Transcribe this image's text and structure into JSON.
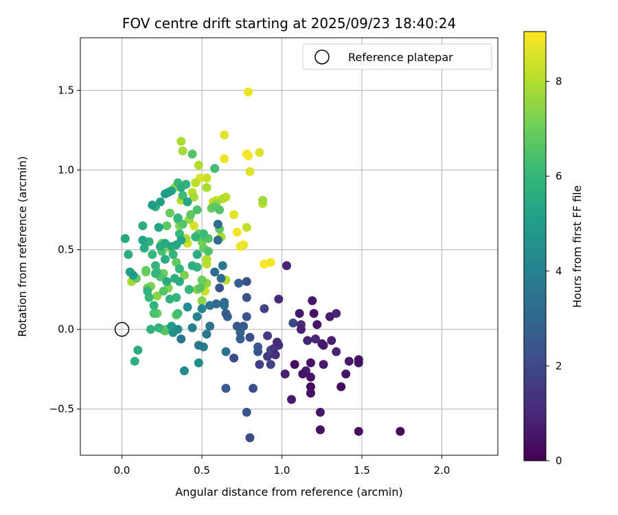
{
  "chart_data": {
    "type": "scatter",
    "title": "FOV centre drift starting at 2025/09/23 18:40:24",
    "xlabel": "Angular distance from reference (arcmin)",
    "ylabel": "Rotation from reference (arcmin)",
    "xlim": [
      -0.26,
      2.35
    ],
    "ylim": [
      -0.79,
      1.83
    ],
    "xticks": [
      0.0,
      0.5,
      1.0,
      1.5,
      2.0
    ],
    "xtick_labels": [
      "0.0",
      "0.5",
      "1.0",
      "1.5",
      "2.0"
    ],
    "yticks": [
      -0.5,
      0.0,
      0.5,
      1.0,
      1.5
    ],
    "ytick_labels": [
      "−0.5",
      "0.0",
      "0.5",
      "1.0",
      "1.5"
    ],
    "grid": true,
    "legend": {
      "position": "top-right",
      "entries": [
        "Reference platepar"
      ]
    },
    "reference_point": {
      "x": 0.0,
      "y": 0.0,
      "label": "Reference platepar"
    },
    "colorbar": {
      "label": "Hours from first FF file",
      "range": [
        0,
        9.05
      ],
      "ticks": [
        0,
        2,
        4,
        6,
        8
      ],
      "tick_labels": [
        "0",
        "2",
        "4",
        "6",
        "8"
      ],
      "colormap": "viridis",
      "stops": [
        "#440154",
        "#482878",
        "#3e4989",
        "#31688e",
        "#26828e",
        "#1f9e89",
        "#35b779",
        "#6ece58",
        "#b5de2b",
        "#fde725"
      ]
    },
    "points": [
      [
        1.74,
        -0.64,
        0.2
      ],
      [
        1.48,
        -0.64,
        0.3
      ],
      [
        1.24,
        -0.63,
        0.4
      ],
      [
        1.24,
        -0.52,
        0.6
      ],
      [
        1.48,
        -0.21,
        0.5
      ],
      [
        1.48,
        -0.19,
        0.4
      ],
      [
        1.42,
        -0.2,
        0.6
      ],
      [
        1.4,
        -0.28,
        0.5
      ],
      [
        1.37,
        -0.36,
        0.3
      ],
      [
        1.34,
        -0.14,
        0.9
      ],
      [
        1.31,
        -0.07,
        0.8
      ],
      [
        1.3,
        0.08,
        0.7
      ],
      [
        1.34,
        0.1,
        0.9
      ],
      [
        1.26,
        -0.1,
        0.6
      ],
      [
        1.26,
        -0.22,
        0.7
      ],
      [
        1.25,
        -0.09,
        0.8
      ],
      [
        1.22,
        0.03,
        0.5
      ],
      [
        1.21,
        -0.06,
        1.0
      ],
      [
        1.2,
        0.1,
        0.4
      ],
      [
        1.19,
        0.18,
        0.6
      ],
      [
        1.18,
        -0.21,
        0.4
      ],
      [
        1.18,
        -0.3,
        0.5
      ],
      [
        1.16,
        -0.07,
        0.9
      ],
      [
        1.18,
        -0.36,
        0.3
      ],
      [
        1.18,
        -0.4,
        0.4
      ],
      [
        1.15,
        -0.26,
        0.7
      ],
      [
        1.13,
        -0.28,
        0.5
      ],
      [
        1.12,
        0.03,
        1.2
      ],
      [
        1.12,
        0.0,
        0.8
      ],
      [
        1.11,
        0.1,
        0.6
      ],
      [
        1.08,
        -0.22,
        0.3
      ],
      [
        1.07,
        0.04,
        2.0
      ],
      [
        1.06,
        -0.44,
        0.7
      ],
      [
        1.03,
        0.4,
        0.9
      ],
      [
        1.02,
        -0.28,
        0.8
      ],
      [
        0.98,
        0.19,
        1.0
      ],
      [
        0.98,
        -0.1,
        1.3
      ],
      [
        0.97,
        -0.08,
        1.1
      ],
      [
        0.96,
        -0.16,
        1.2
      ],
      [
        0.95,
        -0.12,
        1.5
      ],
      [
        0.93,
        -0.22,
        1.8
      ],
      [
        0.93,
        -0.13,
        2.0
      ],
      [
        0.91,
        -0.17,
        1.6
      ],
      [
        0.91,
        -0.04,
        1.6
      ],
      [
        0.89,
        0.13,
        1.8
      ],
      [
        0.86,
        -0.22,
        1.7
      ],
      [
        0.85,
        -0.14,
        2.4
      ],
      [
        0.85,
        -0.11,
        2.5
      ],
      [
        0.82,
        -0.37,
        2.2
      ],
      [
        0.8,
        -0.68,
        2.0
      ],
      [
        0.78,
        -0.52,
        2.4
      ],
      [
        0.8,
        -0.05,
        2.2
      ],
      [
        0.78,
        0.08,
        2.5
      ],
      [
        0.78,
        0.2,
        2.3
      ],
      [
        0.78,
        0.3,
        2.2
      ],
      [
        0.76,
        0.02,
        2.7
      ],
      [
        0.74,
        -0.06,
        2.8
      ],
      [
        0.74,
        -0.02,
        2.9
      ],
      [
        0.73,
        0.29,
        2.8
      ],
      [
        0.72,
        0.02,
        2.5
      ],
      [
        0.7,
        -0.18,
        2.1
      ],
      [
        0.66,
        0.08,
        2.9
      ],
      [
        0.65,
        0.1,
        2.7
      ],
      [
        0.65,
        -0.14,
        3.5
      ],
      [
        0.65,
        -0.37,
        2.6
      ],
      [
        0.64,
        0.17,
        3.2
      ],
      [
        0.64,
        0.15,
        3.6
      ],
      [
        0.63,
        0.4,
        3.6
      ],
      [
        0.62,
        0.32,
        3.3
      ],
      [
        0.61,
        0.26,
        2.3
      ],
      [
        0.6,
        0.56,
        3.1
      ],
      [
        0.59,
        0.16,
        3.0
      ],
      [
        0.58,
        0.36,
        3.2
      ],
      [
        0.55,
        0.15,
        3.4
      ],
      [
        0.55,
        0.02,
        3.5
      ],
      [
        0.53,
        -0.03,
        3.6
      ],
      [
        0.51,
        -0.11,
        3.8
      ],
      [
        0.5,
        0.13,
        4.2
      ],
      [
        0.48,
        -0.1,
        3.7
      ],
      [
        0.48,
        -0.21,
        4.4
      ],
      [
        0.47,
        0.08,
        4.1
      ],
      [
        0.44,
        0.01,
        3.9
      ],
      [
        0.41,
        0.14,
        4.3
      ],
      [
        0.37,
        -0.06,
        3.4
      ],
      [
        0.39,
        -0.26,
        4.3
      ],
      [
        0.35,
        0.1,
        6.3
      ],
      [
        0.35,
        0.0,
        4.4
      ],
      [
        0.32,
        -0.02,
        4.6
      ],
      [
        0.31,
        0.02,
        5.0
      ],
      [
        0.28,
        0.0,
        6.6
      ],
      [
        0.27,
        -0.01,
        6.8
      ],
      [
        0.25,
        0.0,
        7.3
      ],
      [
        0.23,
        0.01,
        6.0
      ],
      [
        0.18,
        0.0,
        5.8
      ],
      [
        0.1,
        -0.13,
        5.5
      ],
      [
        0.08,
        -0.2,
        5.7
      ],
      [
        0.02,
        0.57,
        5.4
      ],
      [
        0.04,
        0.47,
        5.6
      ],
      [
        0.05,
        0.36,
        5.2
      ],
      [
        0.06,
        0.3,
        7.8
      ],
      [
        0.07,
        0.34,
        5.0
      ],
      [
        0.09,
        0.32,
        6.8
      ],
      [
        0.13,
        0.65,
        5.6
      ],
      [
        0.13,
        0.56,
        5.3
      ],
      [
        0.14,
        0.51,
        5.5
      ],
      [
        0.15,
        0.37,
        6.9
      ],
      [
        0.15,
        0.36,
        7.2
      ],
      [
        0.16,
        0.26,
        7.0
      ],
      [
        0.16,
        0.24,
        5.9
      ],
      [
        0.17,
        0.2,
        6.1
      ],
      [
        0.17,
        0.55,
        5.8
      ],
      [
        0.18,
        0.27,
        7.3
      ],
      [
        0.19,
        0.78,
        5.0
      ],
      [
        0.19,
        0.47,
        6.0
      ],
      [
        0.2,
        0.15,
        6.0
      ],
      [
        0.2,
        0.1,
        6.4
      ],
      [
        0.21,
        0.77,
        5.7
      ],
      [
        0.21,
        0.4,
        5.9
      ],
      [
        0.21,
        0.35,
        5.9
      ],
      [
        0.22,
        0.36,
        6.4
      ],
      [
        0.22,
        0.21,
        7.5
      ],
      [
        0.22,
        0.1,
        6.8
      ],
      [
        0.23,
        0.64,
        5.3
      ],
      [
        0.24,
        0.8,
        5.1
      ],
      [
        0.24,
        0.52,
        5.6
      ],
      [
        0.24,
        0.33,
        6.5
      ],
      [
        0.25,
        0.49,
        6.4
      ],
      [
        0.25,
        0.54,
        7.0
      ],
      [
        0.26,
        0.24,
        6.6
      ],
      [
        0.26,
        0.35,
        7.0
      ],
      [
        0.27,
        0.44,
        5.6
      ],
      [
        0.27,
        0.54,
        5.4
      ],
      [
        0.27,
        0.85,
        5.0
      ],
      [
        0.28,
        0.65,
        6.7
      ],
      [
        0.28,
        0.3,
        5.5
      ],
      [
        0.29,
        0.26,
        7.3
      ],
      [
        0.29,
        0.86,
        5.1
      ],
      [
        0.3,
        0.51,
        7.5
      ],
      [
        0.3,
        0.73,
        6.9
      ],
      [
        0.3,
        0.19,
        5.8
      ],
      [
        0.31,
        0.52,
        5.5
      ],
      [
        0.31,
        0.87,
        5.3
      ],
      [
        0.32,
        0.47,
        5.9
      ],
      [
        0.33,
        0.32,
        5.7
      ],
      [
        0.33,
        0.89,
        7.8
      ],
      [
        0.34,
        0.42,
        6.8
      ],
      [
        0.34,
        0.2,
        6.0
      ],
      [
        0.34,
        0.09,
        6.7
      ],
      [
        0.34,
        0.53,
        5.4
      ],
      [
        0.35,
        0.69,
        6.7
      ],
      [
        0.35,
        0.92,
        6.1
      ],
      [
        0.35,
        0.7,
        5.9
      ],
      [
        0.36,
        0.6,
        6.1
      ],
      [
        0.36,
        0.65,
        7.4
      ],
      [
        0.36,
        0.38,
        6.0
      ],
      [
        0.36,
        0.3,
        5.6
      ],
      [
        0.37,
        1.18,
        7.9
      ],
      [
        0.37,
        0.89,
        5.6
      ],
      [
        0.37,
        0.81,
        8.0
      ],
      [
        0.37,
        0.56,
        5.3
      ],
      [
        0.38,
        1.12,
        7.8
      ],
      [
        0.38,
        0.84,
        6.2
      ],
      [
        0.38,
        0.66,
        6.6
      ],
      [
        0.39,
        0.34,
        7.3
      ],
      [
        0.4,
        0.91,
        5.8
      ],
      [
        0.4,
        0.57,
        7.9
      ],
      [
        0.41,
        0.54,
        8.4
      ],
      [
        0.41,
        0.8,
        5.4
      ],
      [
        0.42,
        0.69,
        7.6
      ],
      [
        0.42,
        0.25,
        6.0
      ],
      [
        0.43,
        0.72,
        6.7
      ],
      [
        0.44,
        1.1,
        6.6
      ],
      [
        0.44,
        0.86,
        8.1
      ],
      [
        0.44,
        0.4,
        5.7
      ],
      [
        0.45,
        0.65,
        8.5
      ],
      [
        0.45,
        0.83,
        7.8
      ],
      [
        0.46,
        0.92,
        8.1
      ],
      [
        0.46,
        0.58,
        6.0
      ],
      [
        0.47,
        0.75,
        6.4
      ],
      [
        0.47,
        0.47,
        5.6
      ],
      [
        0.47,
        0.39,
        5.8
      ],
      [
        0.47,
        0.25,
        7.3
      ],
      [
        0.48,
        0.6,
        6.8
      ],
      [
        0.48,
        1.03,
        8.0
      ],
      [
        0.49,
        0.95,
        8.6
      ],
      [
        0.49,
        0.26,
        6.6
      ],
      [
        0.5,
        0.18,
        7.4
      ],
      [
        0.5,
        0.31,
        7.0
      ],
      [
        0.5,
        0.55,
        7.1
      ],
      [
        0.51,
        0.51,
        6.9
      ],
      [
        0.51,
        0.6,
        6.2
      ],
      [
        0.52,
        0.58,
        6.5
      ],
      [
        0.52,
        0.24,
        8.4
      ],
      [
        0.53,
        0.41,
        8.1
      ],
      [
        0.53,
        0.44,
        8.0
      ],
      [
        0.53,
        0.29,
        7.5
      ],
      [
        0.53,
        0.89,
        7.9
      ],
      [
        0.53,
        0.95,
        8.3
      ],
      [
        0.54,
        0.57,
        6.6
      ],
      [
        0.54,
        0.49,
        6.5
      ],
      [
        0.56,
        0.76,
        6.9
      ],
      [
        0.57,
        0.8,
        8.3
      ],
      [
        0.58,
        1.01,
        6.3
      ],
      [
        0.58,
        0.77,
        6.7
      ],
      [
        0.59,
        0.79,
        7.6
      ],
      [
        0.59,
        0.81,
        8.4
      ],
      [
        0.6,
        0.66,
        3.2
      ],
      [
        0.61,
        0.63,
        6.8
      ],
      [
        0.61,
        0.75,
        6.6
      ],
      [
        0.62,
        0.58,
        7.8
      ],
      [
        0.63,
        0.82,
        8.0
      ],
      [
        0.64,
        1.22,
        8.7
      ],
      [
        0.64,
        1.07,
        8.8
      ],
      [
        0.65,
        0.83,
        8.2
      ],
      [
        0.65,
        0.31,
        8.1
      ],
      [
        0.7,
        0.72,
        8.7
      ],
      [
        0.72,
        0.61,
        8.9
      ],
      [
        0.74,
        0.52,
        8.8
      ],
      [
        0.76,
        0.53,
        8.8
      ],
      [
        0.78,
        0.64,
        8.2
      ],
      [
        0.78,
        1.1,
        9.0
      ],
      [
        0.79,
        1.09,
        8.9
      ],
      [
        0.79,
        1.49,
        8.8
      ],
      [
        0.8,
        0.99,
        8.6
      ],
      [
        0.86,
        1.11,
        8.6
      ],
      [
        0.88,
        0.81,
        7.7
      ],
      [
        0.88,
        0.79,
        8.1
      ],
      [
        0.89,
        0.41,
        9.0
      ],
      [
        0.93,
        0.42,
        8.9
      ]
    ]
  }
}
